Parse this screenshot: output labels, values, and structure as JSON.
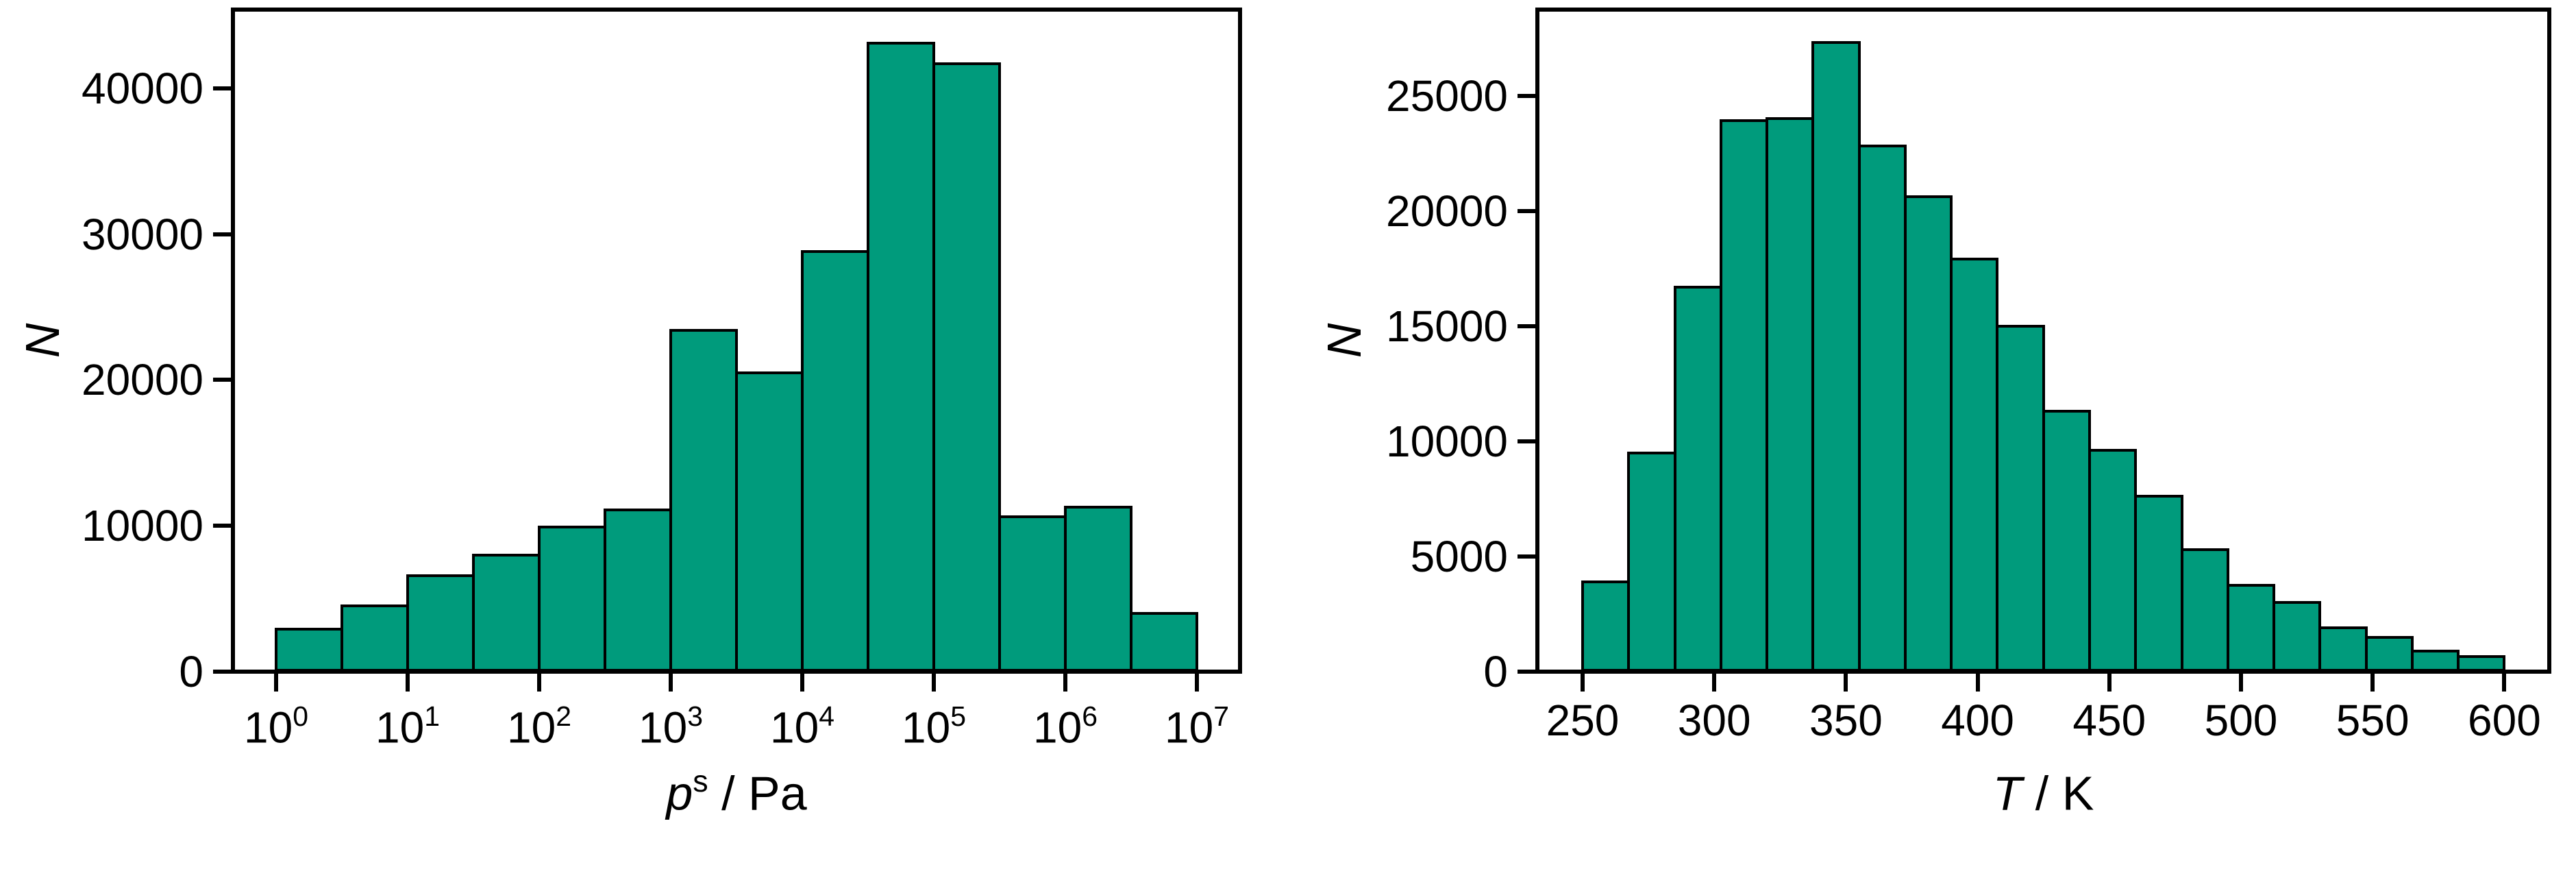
{
  "colors": {
    "background": "#ffffff",
    "bar_fill": "#009B7C",
    "bar_edge": "#000000",
    "axis": "#000000",
    "text": "#000000"
  },
  "chart_data": [
    {
      "type": "bar",
      "variant": "histogram",
      "title": "",
      "x_scale": "log10",
      "xlabel": {
        "variable": "p",
        "superscript": "s",
        "separator": " / ",
        "unit": "Pa"
      },
      "ylabel": "N",
      "x_tick_base": 10,
      "x_tick_exponents": [
        0,
        1,
        2,
        3,
        4,
        5,
        6,
        7
      ],
      "y_ticks": [
        0,
        10000,
        20000,
        30000,
        40000
      ],
      "ylim": [
        0,
        45400
      ],
      "xlim_log10": [
        -0.33,
        7.33
      ],
      "bin_start_log10": 0,
      "bin_width_log10": 0.5,
      "grid": false,
      "legend": "none",
      "values": [
        2900,
        4500,
        6600,
        8000,
        9900,
        11100,
        23400,
        20500,
        28800,
        43100,
        41700,
        10600,
        11300,
        4000
      ]
    },
    {
      "type": "bar",
      "variant": "histogram",
      "title": "",
      "x_scale": "linear",
      "xlabel": {
        "variable": "T",
        "separator": " / ",
        "unit": "K"
      },
      "ylabel": "N",
      "x_ticks": [
        250,
        300,
        350,
        400,
        450,
        500,
        550,
        600
      ],
      "y_ticks": [
        0,
        5000,
        10000,
        15000,
        20000,
        25000
      ],
      "ylim": [
        0,
        28700
      ],
      "xlim": [
        233,
        617
      ],
      "bin_start": 250,
      "bin_width": 17.5,
      "grid": false,
      "legend": "none",
      "values": [
        3900,
        9500,
        16700,
        23900,
        24000,
        27300,
        22800,
        20600,
        17900,
        15000,
        11300,
        9600,
        7600,
        5300,
        3750,
        3000,
        1900,
        1500,
        900,
        650
      ]
    }
  ]
}
